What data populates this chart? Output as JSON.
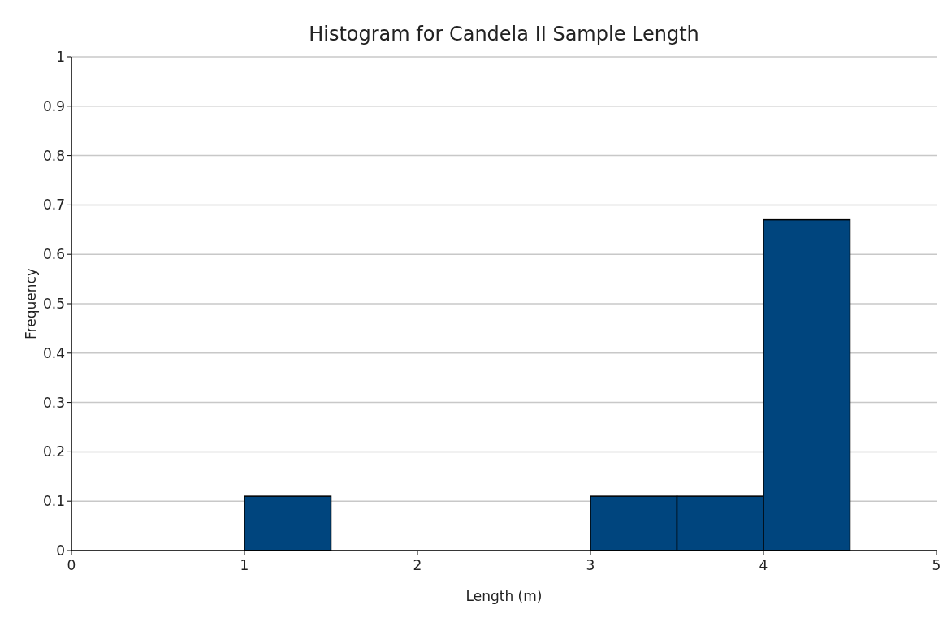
{
  "chart_data": {
    "type": "histogram",
    "title": "Histogram for Candela II Sample Length",
    "xlabel": "Length (m)",
    "ylabel": "Frequency",
    "bins": [
      1,
      1.5,
      2,
      2.5,
      3,
      3.5,
      4,
      4.5
    ],
    "values": [
      0.11,
      0,
      0,
      0,
      0.11,
      0.11,
      0.67
    ],
    "color": "#00457e",
    "xlim": [
      0,
      5
    ],
    "xticks": [
      0,
      1,
      2,
      3,
      4,
      5
    ],
    "ylim": [
      0,
      1
    ],
    "yticks": [
      0,
      0.1,
      0.2,
      0.3,
      0.4,
      0.5,
      0.6,
      0.7,
      0.8,
      0.9,
      1
    ],
    "grid": "y"
  }
}
